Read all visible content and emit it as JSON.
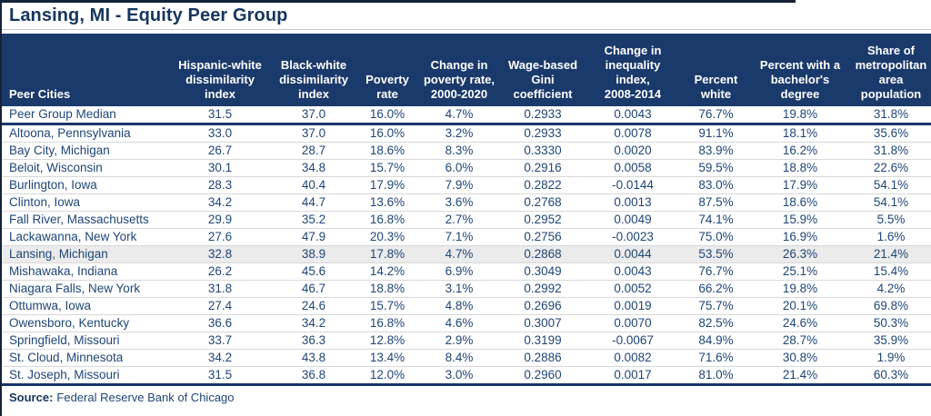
{
  "title": "Lansing, MI - Equity Peer Group",
  "source_label": "Source:",
  "source_text": "Federal Reserve Bank of Chicago",
  "colors": {
    "header_band": "#1A3A6B",
    "title_text": "#16365E",
    "cell_text": "#1F4676",
    "row_separator": "#D8D8D8",
    "highlight_row": "#EBEBEB",
    "thick_rule": "#17366B",
    "frame_border": "#152238"
  },
  "table": {
    "columns": [
      {
        "label": "Peer Cities",
        "align": "left"
      },
      {
        "label": "Hispanic-white\ndissimilarity index"
      },
      {
        "label": "Black-white\ndissimilarity\nindex"
      },
      {
        "label": "Poverty\nrate"
      },
      {
        "label": "Change in\npoverty rate,\n2000-2020"
      },
      {
        "label": "Wage-based\nGini\ncoefficient"
      },
      {
        "label": "Change in\ninequality\nindex,\n2008-2014"
      },
      {
        "label": "Percent\nwhite"
      },
      {
        "label": "Percent with a\nbachelor's\ndegree"
      },
      {
        "label": "Share of\nmetropolitan\narea\npopulation"
      }
    ],
    "rows": [
      {
        "city": "Peer Group Median",
        "median": true,
        "highlight": false,
        "values": [
          "31.5",
          "37.0",
          "16.0%",
          "4.7%",
          "0.2933",
          "0.0043",
          "76.7%",
          "19.8%",
          "31.8%"
        ]
      },
      {
        "city": "Altoona, Pennsylvania",
        "median": false,
        "highlight": false,
        "values": [
          "33.0",
          "37.0",
          "16.0%",
          "3.2%",
          "0.2933",
          "0.0078",
          "91.1%",
          "18.1%",
          "35.6%"
        ]
      },
      {
        "city": "Bay City, Michigan",
        "median": false,
        "highlight": false,
        "values": [
          "26.7",
          "28.7",
          "18.6%",
          "8.3%",
          "0.3330",
          "0.0020",
          "83.9%",
          "16.2%",
          "31.8%"
        ]
      },
      {
        "city": "Beloit, Wisconsin",
        "median": false,
        "highlight": false,
        "values": [
          "30.1",
          "34.8",
          "15.7%",
          "6.0%",
          "0.2916",
          "0.0058",
          "59.5%",
          "18.8%",
          "22.6%"
        ]
      },
      {
        "city": "Burlington, Iowa",
        "median": false,
        "highlight": false,
        "values": [
          "28.3",
          "40.4",
          "17.9%",
          "7.9%",
          "0.2822",
          "-0.0144",
          "83.0%",
          "17.9%",
          "54.1%"
        ]
      },
      {
        "city": "Clinton, Iowa",
        "median": false,
        "highlight": false,
        "values": [
          "34.2",
          "44.7",
          "13.6%",
          "3.6%",
          "0.2768",
          "0.0013",
          "87.5%",
          "18.6%",
          "54.1%"
        ]
      },
      {
        "city": "Fall River, Massachusetts",
        "median": false,
        "highlight": false,
        "values": [
          "29.9",
          "35.2",
          "16.8%",
          "2.7%",
          "0.2952",
          "0.0049",
          "74.1%",
          "15.9%",
          "5.5%"
        ]
      },
      {
        "city": "Lackawanna, New York",
        "median": false,
        "highlight": false,
        "values": [
          "27.6",
          "47.9",
          "20.3%",
          "7.1%",
          "0.2756",
          "-0.0023",
          "75.0%",
          "16.9%",
          "1.6%"
        ]
      },
      {
        "city": "Lansing, Michigan",
        "median": false,
        "highlight": true,
        "values": [
          "32.8",
          "38.9",
          "17.8%",
          "4.7%",
          "0.2868",
          "0.0044",
          "53.5%",
          "26.3%",
          "21.4%"
        ]
      },
      {
        "city": "Mishawaka, Indiana",
        "median": false,
        "highlight": false,
        "values": [
          "26.2",
          "45.6",
          "14.2%",
          "6.9%",
          "0.3049",
          "0.0043",
          "76.7%",
          "25.1%",
          "15.4%"
        ]
      },
      {
        "city": "Niagara Falls, New York",
        "median": false,
        "highlight": false,
        "values": [
          "31.8",
          "46.7",
          "18.8%",
          "3.1%",
          "0.2992",
          "0.0052",
          "66.2%",
          "19.8%",
          "4.2%"
        ]
      },
      {
        "city": "Ottumwa, Iowa",
        "median": false,
        "highlight": false,
        "values": [
          "27.4",
          "24.6",
          "15.7%",
          "4.8%",
          "0.2696",
          "0.0019",
          "75.7%",
          "20.1%",
          "69.8%"
        ]
      },
      {
        "city": "Owensboro, Kentucky",
        "median": false,
        "highlight": false,
        "values": [
          "36.6",
          "34.2",
          "16.8%",
          "4.6%",
          "0.3007",
          "0.0070",
          "82.5%",
          "24.6%",
          "50.3%"
        ]
      },
      {
        "city": "Springfield, Missouri",
        "median": false,
        "highlight": false,
        "values": [
          "33.7",
          "36.3",
          "12.8%",
          "2.9%",
          "0.3199",
          "-0.0067",
          "84.9%",
          "28.7%",
          "35.9%"
        ]
      },
      {
        "city": "St. Cloud, Minnesota",
        "median": false,
        "highlight": false,
        "values": [
          "34.2",
          "43.8",
          "13.4%",
          "8.4%",
          "0.2886",
          "0.0082",
          "71.6%",
          "30.8%",
          "1.9%"
        ]
      },
      {
        "city": "St. Joseph, Missouri",
        "median": false,
        "highlight": false,
        "values": [
          "31.5",
          "36.8",
          "12.0%",
          "3.0%",
          "0.2960",
          "0.0017",
          "81.0%",
          "21.4%",
          "60.3%"
        ]
      }
    ]
  }
}
